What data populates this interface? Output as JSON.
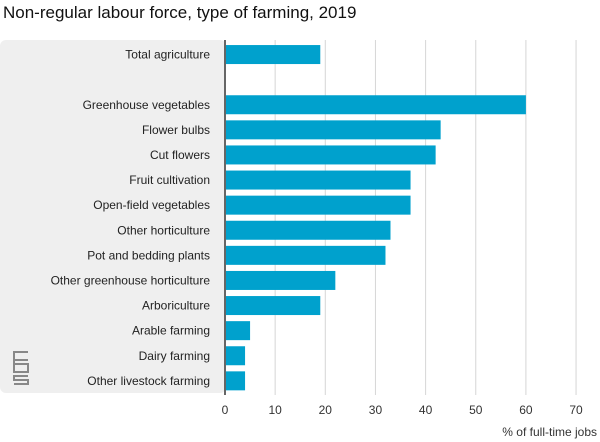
{
  "chart_data": {
    "type": "bar",
    "orientation": "horizontal",
    "title": "Non-regular labour force, type of farming, 2019",
    "xlabel": "% of full-time jobs",
    "ylabel": "",
    "xlim": [
      0,
      70
    ],
    "xticks": [
      0,
      10,
      20,
      30,
      40,
      50,
      60,
      70
    ],
    "grid": true,
    "bar_color": "#00a1cd",
    "categories": [
      "Total agriculture",
      "",
      "Greenhouse vegetables",
      "Flower bulbs",
      "Cut flowers",
      "Fruit cultivation",
      "Open-field vegetables",
      "Other horticulture",
      "Pot and bedding plants",
      "Other greenhouse horticulture",
      "Arboriculture",
      "Arable farming",
      "Dairy farming",
      "Other livestock farming"
    ],
    "values": [
      19,
      null,
      60,
      43,
      42,
      37,
      37,
      33,
      32,
      22,
      19,
      5,
      4,
      4
    ]
  }
}
